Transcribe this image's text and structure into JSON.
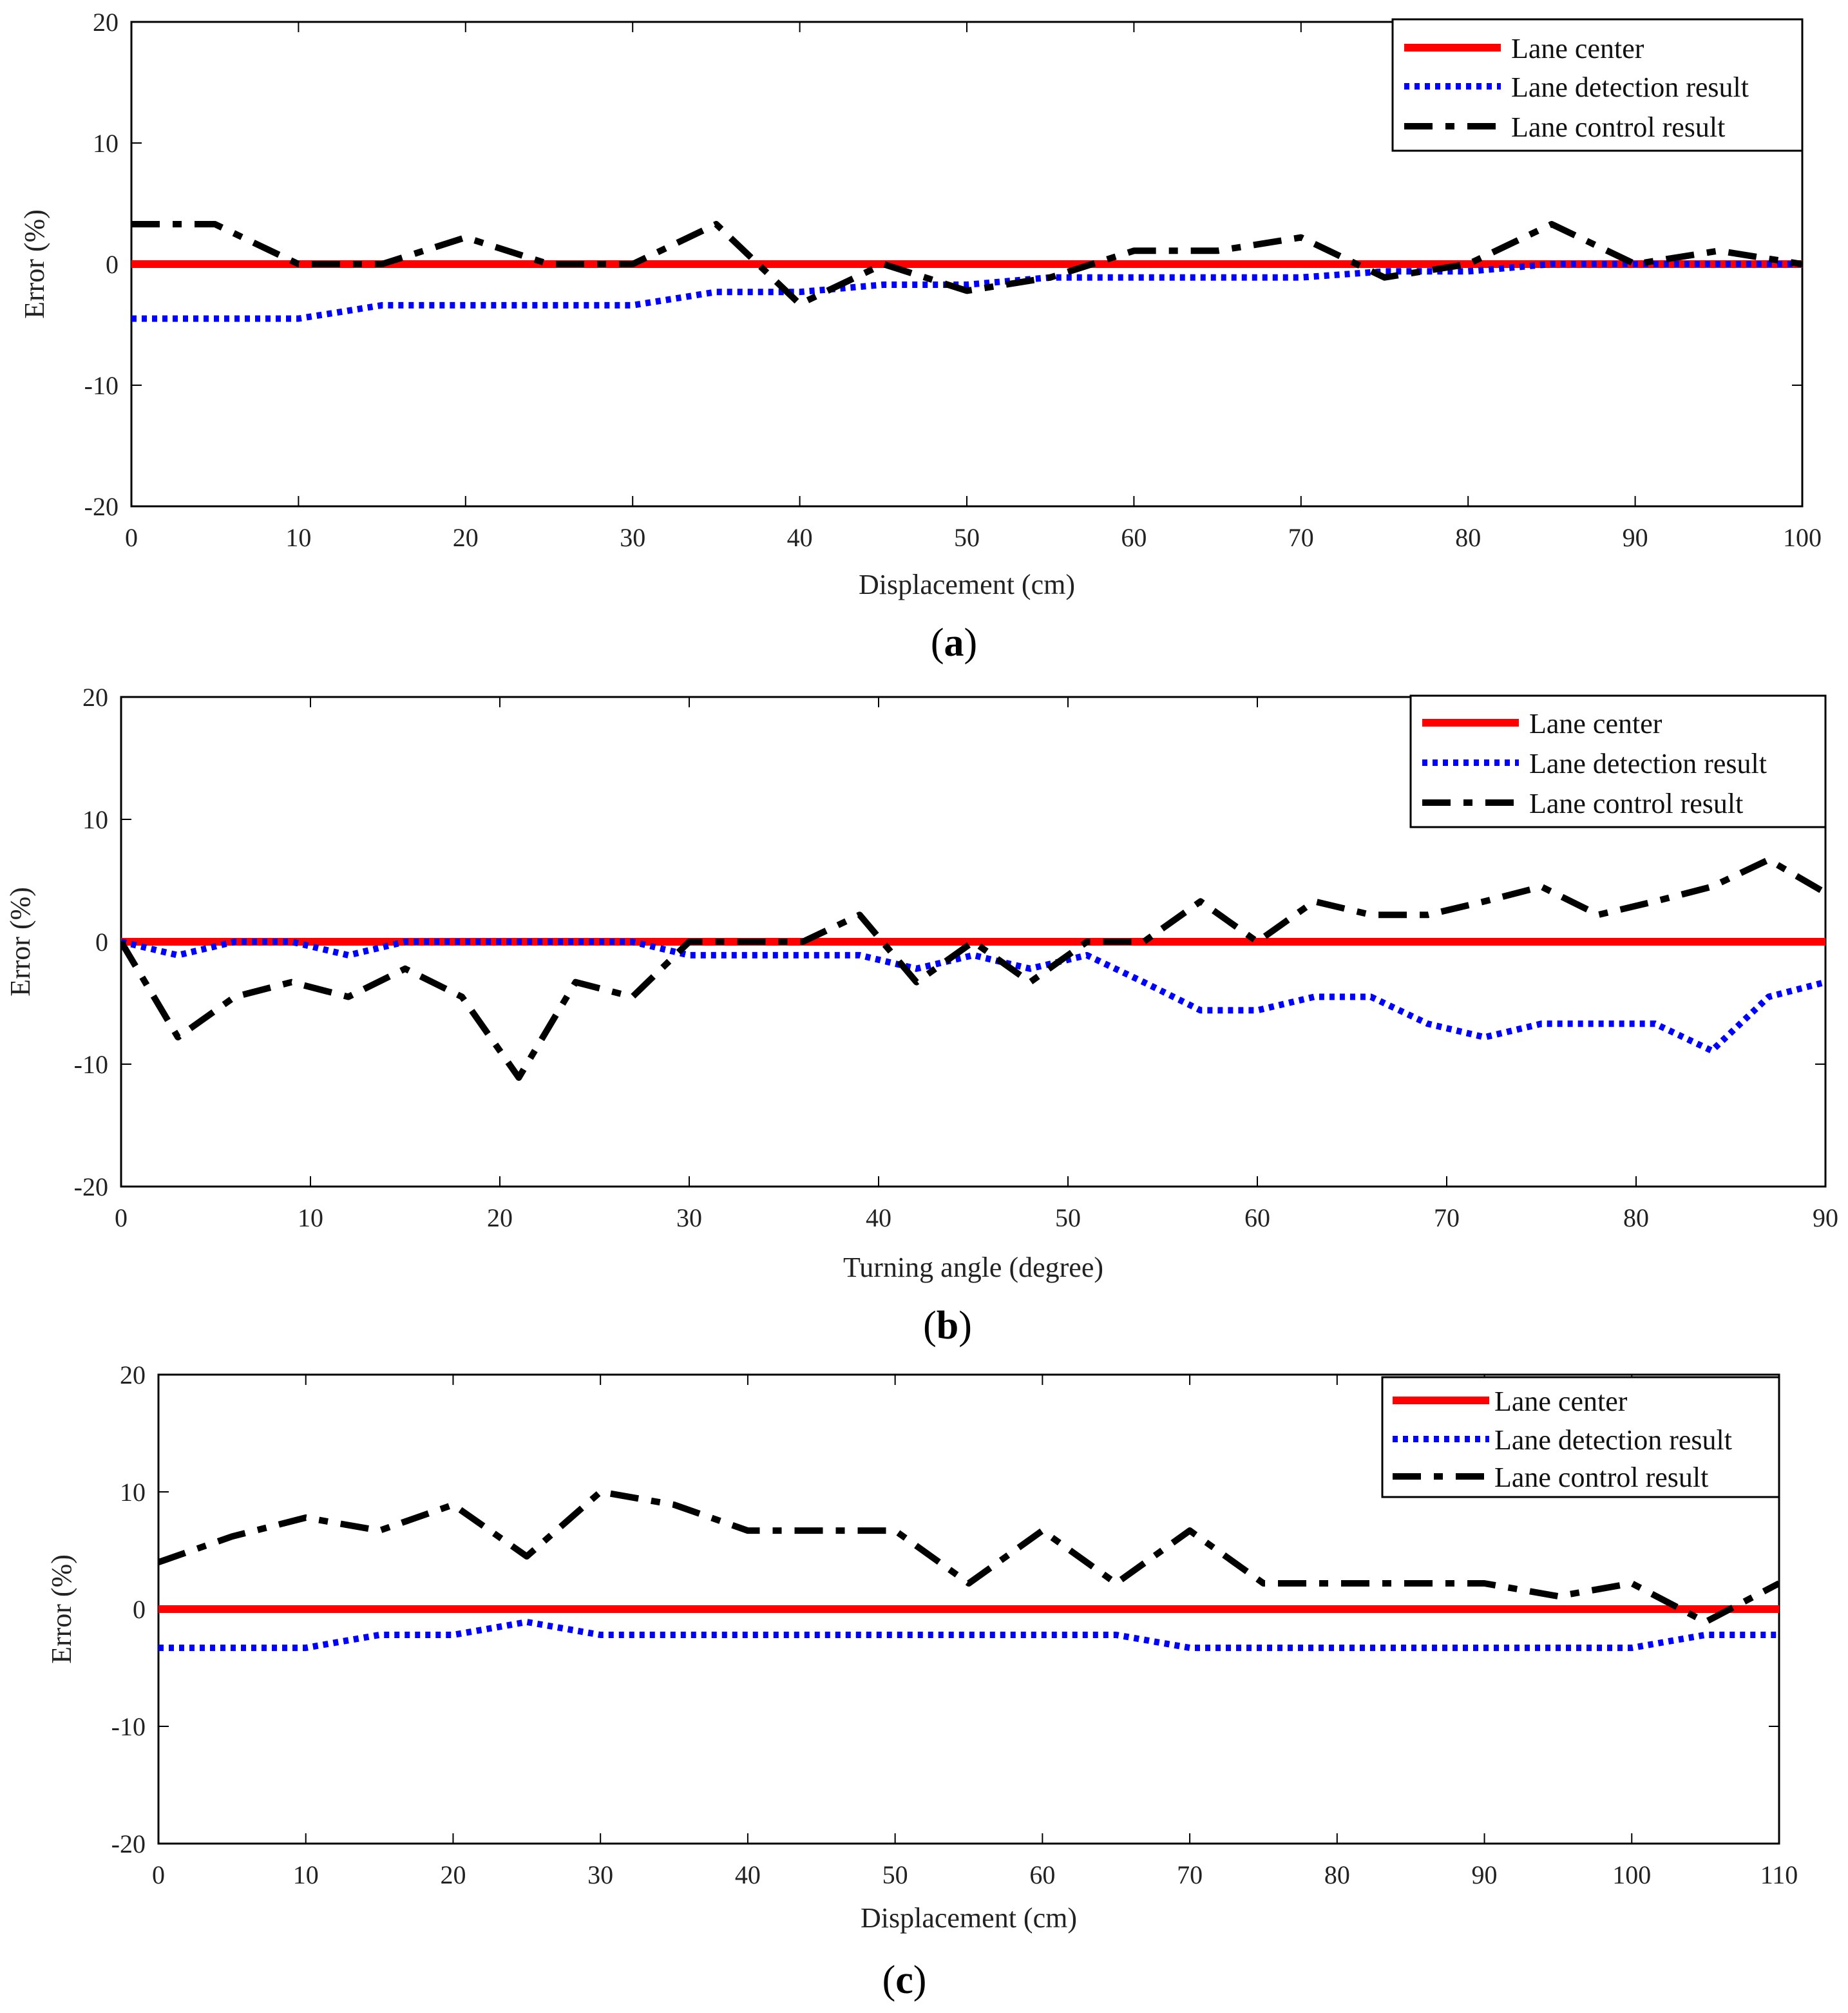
{
  "colors": {
    "lane_center": "#ff0000",
    "lane_detection": "#0000ff",
    "lane_control": "#000000",
    "axis": "#000000"
  },
  "chart_data": [
    {
      "panel": "(a)",
      "panel_letter": "a",
      "type": "line",
      "title": "",
      "xlabel": "Displacement (cm)",
      "ylabel": "Error (%)",
      "xlim": [
        0,
        100
      ],
      "ylim": [
        -20,
        20
      ],
      "xticks": [
        0,
        10,
        20,
        30,
        40,
        50,
        60,
        70,
        80,
        90,
        100
      ],
      "yticks": [
        -20,
        -10,
        0,
        10,
        20
      ],
      "legend_position": "top-right",
      "series": [
        {
          "name": "Lane center",
          "style": "solid",
          "x": [
            0,
            100
          ],
          "y": [
            0,
            0
          ]
        },
        {
          "name": "Lane detection result",
          "style": "dotted",
          "x": [
            0,
            5,
            10,
            15,
            20,
            25,
            30,
            35,
            40,
            45,
            50,
            55,
            60,
            65,
            70,
            75,
            80,
            85,
            90,
            95,
            100
          ],
          "y": [
            -4.5,
            -4.5,
            -4.5,
            -3.4,
            -3.4,
            -3.4,
            -3.4,
            -2.3,
            -2.3,
            -1.7,
            -1.7,
            -1.1,
            -1.1,
            -1.1,
            -1.1,
            -0.6,
            -0.6,
            0,
            0,
            0,
            0
          ]
        },
        {
          "name": "Lane control result",
          "style": "dashdot",
          "x": [
            0,
            5,
            10,
            15,
            20,
            25,
            30,
            35,
            40,
            45,
            50,
            55,
            60,
            65,
            70,
            75,
            80,
            85,
            90,
            95,
            100
          ],
          "y": [
            3.3,
            3.3,
            0,
            0,
            2.2,
            0,
            0,
            3.3,
            -3.3,
            0,
            -2.2,
            -1.1,
            1.1,
            1.1,
            2.2,
            -1.1,
            0,
            3.3,
            0,
            1.1,
            0
          ]
        }
      ]
    },
    {
      "panel": "(b)",
      "panel_letter": "b",
      "type": "line",
      "title": "",
      "xlabel": "Turning angle (degree)",
      "ylabel": "Error (%)",
      "xlim": [
        0,
        90
      ],
      "ylim": [
        -20,
        20
      ],
      "xticks": [
        0,
        10,
        20,
        30,
        40,
        50,
        60,
        70,
        80,
        90
      ],
      "yticks": [
        -20,
        -10,
        0,
        10,
        20
      ],
      "legend_position": "top-right",
      "series": [
        {
          "name": "Lane center",
          "style": "solid",
          "x": [
            0,
            90
          ],
          "y": [
            0,
            0
          ]
        },
        {
          "name": "Lane detection result",
          "style": "dotted",
          "x": [
            0,
            3,
            6,
            9,
            12,
            15,
            18,
            21,
            24,
            27,
            30,
            33,
            36,
            39,
            42,
            45,
            48,
            51,
            54,
            57,
            60,
            63,
            66,
            69,
            72,
            75,
            78,
            81,
            84,
            87,
            90
          ],
          "y": [
            0,
            -1.1,
            0,
            0,
            -1.1,
            0,
            0,
            0,
            0,
            0,
            -1.1,
            -1.1,
            -1.1,
            -1.1,
            -2.2,
            -1.1,
            -2.2,
            -1.1,
            -3.3,
            -5.6,
            -5.6,
            -4.5,
            -4.5,
            -6.7,
            -7.8,
            -6.7,
            -6.7,
            -6.7,
            -8.9,
            -4.5,
            -3.3
          ]
        },
        {
          "name": "Lane control result",
          "style": "dashdot",
          "x": [
            0,
            3,
            6,
            9,
            12,
            15,
            18,
            21,
            24,
            27,
            30,
            33,
            36,
            39,
            42,
            45,
            48,
            51,
            54,
            57,
            60,
            63,
            66,
            69,
            72,
            75,
            78,
            81,
            84,
            87,
            90
          ],
          "y": [
            0,
            -7.8,
            -4.5,
            -3.3,
            -4.5,
            -2.2,
            -4.5,
            -11.1,
            -3.3,
            -4.5,
            0,
            0,
            0,
            2.2,
            -3.3,
            0,
            -3.3,
            0,
            0,
            3.3,
            0,
            3.3,
            2.2,
            2.2,
            3.3,
            4.5,
            2.2,
            3.3,
            4.5,
            6.7,
            4.0
          ]
        }
      ]
    },
    {
      "panel": "(c)",
      "panel_letter": "c",
      "type": "line",
      "title": "",
      "xlabel": "Displacement (cm)",
      "ylabel": "Error (%)",
      "xlim": [
        0,
        110
      ],
      "ylim": [
        -20,
        20
      ],
      "xticks": [
        0,
        10,
        20,
        30,
        40,
        50,
        60,
        70,
        80,
        90,
        100,
        110
      ],
      "yticks": [
        -20,
        -10,
        0,
        10,
        20
      ],
      "legend_position": "top-right",
      "series": [
        {
          "name": "Lane center",
          "style": "solid",
          "x": [
            0,
            110
          ],
          "y": [
            0,
            0
          ]
        },
        {
          "name": "Lane detection result",
          "style": "dotted",
          "x": [
            0,
            5,
            10,
            15,
            20,
            25,
            30,
            35,
            40,
            45,
            50,
            55,
            60,
            65,
            70,
            75,
            80,
            85,
            90,
            95,
            100,
            105,
            110
          ],
          "y": [
            -3.3,
            -3.3,
            -3.3,
            -2.2,
            -2.2,
            -1.1,
            -2.2,
            -2.2,
            -2.2,
            -2.2,
            -2.2,
            -2.2,
            -2.2,
            -2.2,
            -3.3,
            -3.3,
            -3.3,
            -3.3,
            -3.3,
            -3.3,
            -3.3,
            -2.2,
            -2.2
          ]
        },
        {
          "name": "Lane control result",
          "style": "dashdot",
          "x": [
            0,
            5,
            10,
            15,
            20,
            25,
            30,
            35,
            40,
            45,
            50,
            55,
            60,
            65,
            70,
            75,
            80,
            85,
            90,
            95,
            100,
            105,
            110
          ],
          "y": [
            4.0,
            6.2,
            7.8,
            6.7,
            8.9,
            4.5,
            10.0,
            8.9,
            6.7,
            6.7,
            6.7,
            2.2,
            6.7,
            2.2,
            6.7,
            2.2,
            2.2,
            2.2,
            2.2,
            1.1,
            2.2,
            -1.1,
            2.2
          ]
        }
      ]
    }
  ]
}
